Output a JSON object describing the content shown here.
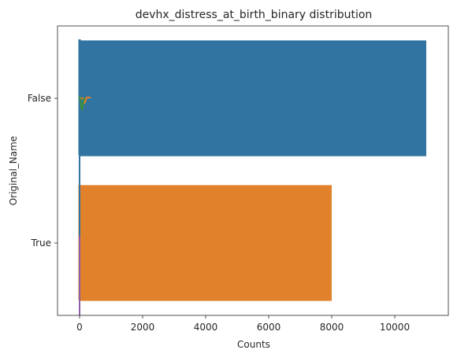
{
  "chart_data": {
    "type": "bar",
    "orientation": "horizontal",
    "title": "devhx_distress_at_birth_binary distribution",
    "xlabel": "Counts",
    "ylabel": "Original_Name",
    "categories": [
      "False",
      "True"
    ],
    "values": [
      11000,
      8000
    ],
    "colors": [
      "#3274a1",
      "#e1812c"
    ],
    "xlim": [
      -700,
      11700
    ],
    "xticks": [
      0,
      2000,
      4000,
      6000,
      8000,
      10000
    ],
    "xtick_labels": [
      "0",
      "2000",
      "4000",
      "6000",
      "8000",
      "10000"
    ],
    "grid": false
  }
}
